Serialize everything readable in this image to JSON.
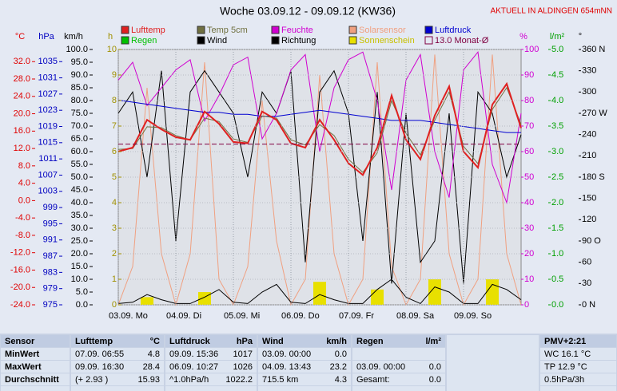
{
  "chart_data": {
    "type": "line",
    "title": "Woche 03.09.12 - 09.09.12 (KW36)",
    "annotation": "AKTUELL IN ALDINGEN 654mNN",
    "x": [
      0,
      0.25,
      0.5,
      0.75,
      1,
      1.25,
      1.5,
      1.75,
      2,
      2.25,
      2.5,
      2.75,
      3,
      3.25,
      3.5,
      3.75,
      4,
      4.25,
      4.5,
      4.75,
      5,
      5.25,
      5.5,
      5.75,
      6,
      6.25,
      6.5,
      6.75,
      7
    ],
    "xlim": [
      0,
      7
    ],
    "xticks": [
      {
        "value": 0,
        "label": "03.09.  Mo"
      },
      {
        "value": 1,
        "label": "04.09.  Di"
      },
      {
        "value": 2,
        "label": "05.09.  Mi"
      },
      {
        "value": 3,
        "label": "06.09.  Do"
      },
      {
        "value": 4,
        "label": "07.09.  Fr"
      },
      {
        "value": 5,
        "label": "08.09.  Sa"
      },
      {
        "value": 6,
        "label": "09.09.  So"
      }
    ],
    "grid": true,
    "axes": {
      "temp": {
        "label": "°C",
        "color": "#e00000",
        "lim": [
          -24,
          34.8
        ],
        "ticks": [
          {
            "value": 32,
            "label": "32.0"
          },
          {
            "value": 28,
            "label": "28.0"
          },
          {
            "value": 24,
            "label": "24.0"
          },
          {
            "value": 20,
            "label": "20.0"
          },
          {
            "value": 16,
            "label": "16.0"
          },
          {
            "value": 12,
            "label": "12.0"
          },
          {
            "value": 8,
            "label": "8.0"
          },
          {
            "value": 4,
            "label": "4.0"
          },
          {
            "value": 0,
            "label": "0.0"
          },
          {
            "value": -4,
            "label": "-4.0"
          },
          {
            "value": -8,
            "label": "-8.0"
          },
          {
            "value": -12,
            "label": "-12.0"
          },
          {
            "value": -16,
            "label": "-16.0"
          },
          {
            "value": -20,
            "label": "-20.0"
          },
          {
            "value": -24,
            "label": "-24.0"
          }
        ]
      },
      "hpa": {
        "label": "hPa",
        "color": "#0000c0",
        "lim": [
          975,
          1038
        ],
        "ticks": [
          1035,
          1031,
          1027,
          1023,
          1019,
          1015,
          1011,
          1007,
          1003,
          999,
          995,
          991,
          987,
          983,
          979,
          975
        ]
      },
      "kmh": {
        "label": "km/h",
        "color": "#000000",
        "lim": [
          0,
          100
        ],
        "ticks": [
          {
            "value": 100,
            "label": "100.0"
          },
          {
            "value": 95,
            "label": "95.0"
          },
          {
            "value": 90,
            "label": "90.0"
          },
          {
            "value": 85,
            "label": "85.0"
          },
          {
            "value": 80,
            "label": "80.0"
          },
          {
            "value": 75,
            "label": "75.0"
          },
          {
            "value": 70,
            "label": "70.0"
          },
          {
            "value": 65,
            "label": "65.0"
          },
          {
            "value": 60,
            "label": "60.0"
          },
          {
            "value": 55,
            "label": "55.0"
          },
          {
            "value": 50,
            "label": "50.0"
          },
          {
            "value": 45,
            "label": "45.0"
          },
          {
            "value": 40,
            "label": "40.0"
          },
          {
            "value": 35,
            "label": "35.0"
          },
          {
            "value": 30,
            "label": "30.0"
          },
          {
            "value": 25,
            "label": "25.0"
          },
          {
            "value": 20,
            "label": "20.0"
          },
          {
            "value": 15,
            "label": "15.0"
          },
          {
            "value": 10,
            "label": "10.0"
          },
          {
            "value": 5,
            "label": "5.0"
          },
          {
            "value": 0,
            "label": "0.0"
          }
        ]
      },
      "h": {
        "label": "h",
        "color": "#a09000",
        "lim": [
          0,
          10
        ],
        "ticks": [
          10,
          9,
          8,
          7,
          6,
          5,
          4,
          3,
          2,
          1,
          0
        ]
      },
      "pct": {
        "label": "%",
        "color": "#d000d0",
        "lim": [
          0,
          100
        ],
        "ticks": [
          100,
          90,
          80,
          70,
          60,
          50,
          40,
          30,
          20,
          10,
          0
        ]
      },
      "lm2": {
        "label": "l/m²",
        "color": "#00a000",
        "lim": [
          0,
          5
        ],
        "ticks": [
          {
            "value": 5,
            "label": "5.0"
          },
          {
            "value": 4.5,
            "label": "4.5"
          },
          {
            "value": 4,
            "label": "4.0"
          },
          {
            "value": 3.5,
            "label": "3.5"
          },
          {
            "value": 3,
            "label": "3.0"
          },
          {
            "value": 2.5,
            "label": "2.5"
          },
          {
            "value": 2,
            "label": "2.0"
          },
          {
            "value": 1.5,
            "label": "1.5"
          },
          {
            "value": 1,
            "label": "1.0"
          },
          {
            "value": 0.5,
            "label": "0.5"
          },
          {
            "value": 0,
            "label": "0.0"
          }
        ]
      },
      "deg": {
        "label": "°",
        "color": "#000000",
        "lim": [
          0,
          360
        ],
        "ticks": [
          {
            "value": 360,
            "label": "360 N"
          },
          330,
          300,
          {
            "value": 270,
            "label": "270 W"
          },
          240,
          210,
          {
            "value": 180,
            "label": "180 S"
          },
          150,
          120,
          {
            "value": 90,
            "label": "90  O"
          },
          60,
          30,
          {
            "value": 0,
            "label": "0  N"
          }
        ]
      }
    },
    "series": [
      {
        "name": "Lufttemp",
        "color": "#e02020",
        "style": "line",
        "axis": "temp",
        "values": [
          11.3,
          12.2,
          18.6,
          16.4,
          14.6,
          14.0,
          20.5,
          17.7,
          13.5,
          13.2,
          20.5,
          18.6,
          13.2,
          12.2,
          18.6,
          14.0,
          8.6,
          5.9,
          12.2,
          24.2,
          14.0,
          9.5,
          19.6,
          26.3,
          11.3,
          7.6,
          22.1,
          26.9,
          16.7
        ]
      },
      {
        "name": "Temp 5cm",
        "color": "#707040",
        "style": "line",
        "axis": "temp",
        "values": [
          11.8,
          12.0,
          17.0,
          16.8,
          15.0,
          14.0,
          19.0,
          18.2,
          14.2,
          13.4,
          19.5,
          19.0,
          14.0,
          12.8,
          17.5,
          15.0,
          9.5,
          6.5,
          11.0,
          23.0,
          15.5,
          10.5,
          18.5,
          25.0,
          12.5,
          8.5,
          21.0,
          26.0,
          17.5
        ]
      },
      {
        "name": "Feuchte",
        "color": "#d000d0",
        "style": "line",
        "axis": "pct",
        "values": [
          88,
          95,
          78,
          85,
          92,
          96,
          72,
          82,
          94,
          97,
          65,
          75,
          92,
          98,
          60,
          85,
          96,
          99,
          80,
          45,
          88,
          98,
          60,
          42,
          92,
          99,
          55,
          40,
          75
        ]
      },
      {
        "name": "Solarsensor",
        "color": "#f0a080",
        "style": "line",
        "axis": "pct",
        "values": [
          0,
          15,
          85,
          20,
          0,
          20,
          95,
          10,
          0,
          15,
          80,
          25,
          0,
          10,
          90,
          20,
          0,
          10,
          95,
          15,
          0,
          10,
          98,
          20,
          0,
          10,
          98,
          20,
          0
        ]
      },
      {
        "name": "Luftdruck",
        "color": "#0000d0",
        "style": "line",
        "axis": "hpa",
        "values": [
          1025.5,
          1025,
          1024.5,
          1024,
          1023.5,
          1023,
          1022.5,
          1022.5,
          1022,
          1022,
          1021.5,
          1021.5,
          1022,
          1022.5,
          1023,
          1022.5,
          1022,
          1021.5,
          1021,
          1020.5,
          1020.5,
          1020.5,
          1020,
          1019.5,
          1019,
          1018.5,
          1018,
          1017.5,
          1017.5
        ]
      },
      {
        "name": "Regen",
        "color": "#00c000",
        "style": "bar",
        "axis": "lm2",
        "values": [
          0,
          0,
          0,
          0,
          0,
          0,
          0,
          0,
          0,
          0,
          0,
          0,
          0,
          0,
          0,
          0,
          0,
          0,
          0,
          0,
          0,
          0,
          0,
          0,
          0,
          0,
          0,
          0,
          0
        ]
      },
      {
        "name": "Wind",
        "color": "#000000",
        "style": "line",
        "axis": "kmh",
        "values": [
          0.5,
          1,
          4,
          2,
          0.5,
          0.5,
          3,
          6,
          1,
          0.5,
          5,
          8,
          1,
          0.5,
          4,
          2,
          0.5,
          0.5,
          6,
          10,
          3,
          0.5,
          7,
          5,
          0.5,
          0.5,
          8,
          6,
          2
        ]
      },
      {
        "name": "Richtung",
        "color": "#000000",
        "style": "line",
        "axis": "deg",
        "values": [
          270,
          300,
          180,
          330,
          90,
          300,
          330,
          300,
          270,
          180,
          300,
          270,
          330,
          60,
          300,
          330,
          270,
          90,
          300,
          30,
          270,
          60,
          90,
          270,
          30,
          300,
          270,
          180,
          240
        ]
      },
      {
        "name": "Sonnenschein",
        "color": "#e8e000",
        "style": "bar",
        "axis": "h",
        "values": [
          0,
          0,
          0.3,
          0,
          0,
          0,
          0.5,
          0,
          0,
          0,
          0,
          0,
          0,
          0,
          0.9,
          0,
          0,
          0,
          0.6,
          0,
          0,
          0,
          1.0,
          0,
          0,
          0,
          1.0,
          0,
          0
        ]
      },
      {
        "name": "13.0 Monat-Ø",
        "color": "#800040",
        "style": "hline",
        "axis": "temp",
        "value": 13.0
      }
    ]
  },
  "table": {
    "columns": [
      {
        "title": "Sensor",
        "cells": [
          "MinWert",
          "MaxWert",
          "Durchschnitt"
        ]
      },
      {
        "title": "Lufttemp",
        "unit": "°C",
        "cells": [
          [
            "07.09.  06:55",
            "4.8"
          ],
          [
            "09.09.  16:30",
            "28.4"
          ],
          [
            "(+ 2.93 )",
            "15.93"
          ]
        ]
      },
      {
        "title": "Luftdruck",
        "unit": "hPa",
        "cells": [
          [
            "09.09.  15:36",
            "1017"
          ],
          [
            "06.09.  10:27",
            "1026"
          ],
          [
            "^1.0hPa/h",
            "1022.2"
          ]
        ]
      },
      {
        "title": "Wind",
        "unit": "km/h",
        "cells": [
          [
            "03.09.  00:00",
            "0.0"
          ],
          [
            "04.09.  13:43",
            "23.2"
          ],
          [
            "715.5 km",
            "4.3"
          ]
        ]
      },
      {
        "title": "Regen",
        "unit": "l/m²",
        "cells": [
          null,
          [
            "03.09.  00:00",
            "0.0"
          ],
          [
            "Gesamt:",
            "0.0"
          ]
        ]
      },
      {
        "title": "PMV+2:21",
        "cells": [
          "WC 16.1 °C",
          "TP 12.9 °C",
          "0.5hPa/3h"
        ]
      }
    ]
  }
}
